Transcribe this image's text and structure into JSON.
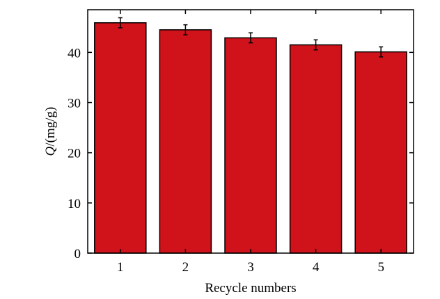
{
  "chart_data": {
    "type": "bar",
    "title": "",
    "xlabel": "Recycle numbers",
    "ylabel_var": "Q",
    "ylabel_unit": "/(mg/g)",
    "categories": [
      "1",
      "2",
      "3",
      "4",
      "5"
    ],
    "values": [
      45.9,
      44.5,
      42.9,
      41.5,
      40.1
    ],
    "errors": [
      1.0,
      1.0,
      1.0,
      1.0,
      1.0
    ],
    "ylim": [
      0,
      48.5
    ],
    "yticks": [
      0,
      10,
      20,
      30,
      40
    ],
    "grid": false,
    "bar_color": "#d0121b",
    "edge_color": "#000000"
  }
}
